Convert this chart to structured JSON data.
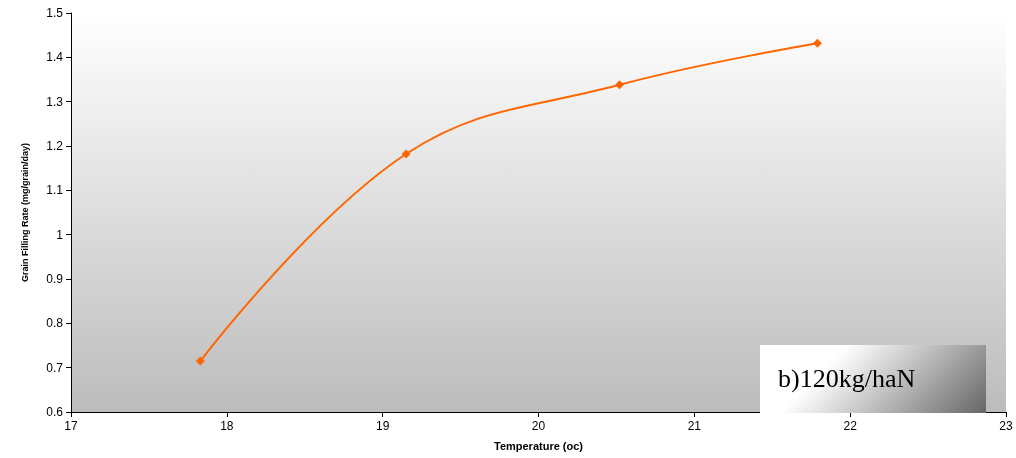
{
  "chart_data": {
    "type": "line",
    "xlabel": "Temperature (oc)",
    "ylabel": "Grain Filling Rate (mg/grain/day)",
    "x": [
      17.83,
      19.15,
      20.52,
      21.79
    ],
    "series": [
      {
        "color": "#ff6600",
        "values": [
          0.715,
          1.182,
          1.338,
          1.432
        ]
      }
    ],
    "xlim": [
      17,
      23
    ],
    "xticks": [
      17,
      18,
      19,
      20,
      21,
      22,
      23
    ],
    "ylim": [
      0.6,
      1.5
    ],
    "yticks": [
      0.6,
      0.7,
      0.8,
      0.9,
      1,
      1.1,
      1.2,
      1.3,
      1.4,
      1.5
    ],
    "annotations": [
      "b)120kg/haN"
    ],
    "grid": false,
    "marker": "diamond",
    "line_style": "solid"
  }
}
